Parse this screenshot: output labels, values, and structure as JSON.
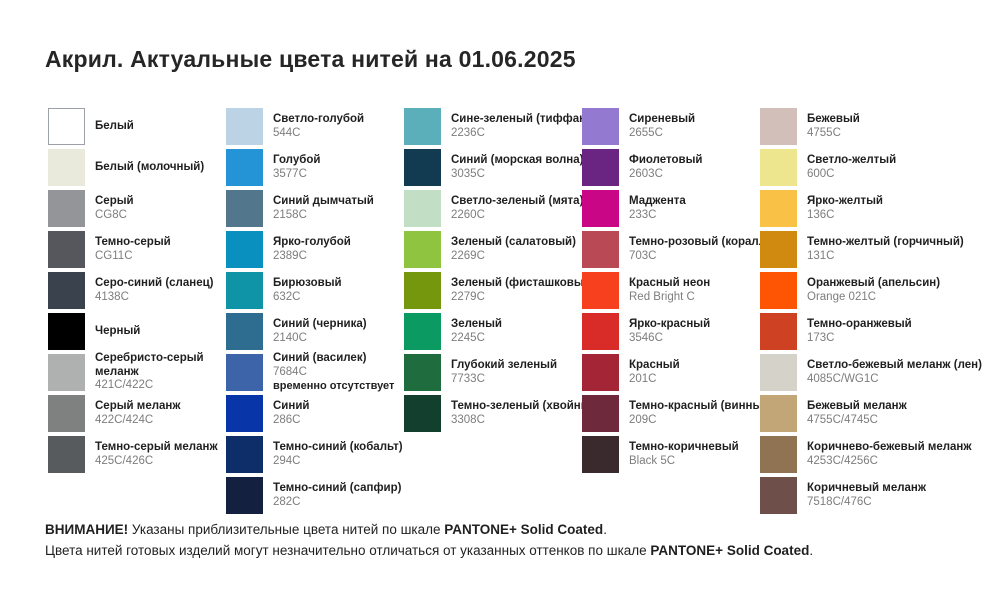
{
  "title": "Акрил. Актуальные цвета нитей на 01.06.2025",
  "columns": [
    {
      "items": [
        {
          "name": "Белый",
          "code": "",
          "color": "#FFFFFF",
          "border": true
        },
        {
          "name": "Белый (молочный)",
          "code": "",
          "color": "#E9E9DC"
        },
        {
          "name": "Серый",
          "code": "CG8C",
          "color": "#939598"
        },
        {
          "name": "Темно-серый",
          "code": "CG11C",
          "color": "#55575C"
        },
        {
          "name": "Серо-синий (сланец)",
          "code": "4138C",
          "color": "#3A424D"
        },
        {
          "name": "Черный",
          "code": "",
          "color": "#000000"
        },
        {
          "name": "Серебристо-серый меланж",
          "code": "421C/422C",
          "color": "#AFB1B0",
          "wrap": true
        },
        {
          "name": "Серый меланж",
          "code": "422C/424C",
          "color": "#7E8180"
        },
        {
          "name": "Темно-серый меланж",
          "code": "425C/426C",
          "color": "#575B5E"
        }
      ]
    },
    {
      "items": [
        {
          "name": "Светло-голубой",
          "code": "544C",
          "color": "#BCD3E6"
        },
        {
          "name": "Голубой",
          "code": "3577C",
          "color": "#2494D6"
        },
        {
          "name": "Синий дымчатый",
          "code": "2158C",
          "color": "#52768B"
        },
        {
          "name": "Ярко-голубой",
          "code": "2389C",
          "color": "#0990BE"
        },
        {
          "name": "Бирюзовый",
          "code": "632C",
          "color": "#0E94A6"
        },
        {
          "name": "Синий (черника)",
          "code": "2140C",
          "color": "#2F6D90"
        },
        {
          "name": "Синий (василек)",
          "code": "7684C",
          "color": "#3D63A8",
          "note": "временно отсутствует"
        },
        {
          "name": "Синий",
          "code": "286C",
          "color": "#0836A9"
        },
        {
          "name": "Темно-синий (кобальт)",
          "code": "294C",
          "color": "#0D2E69"
        },
        {
          "name": "Темно-синий (сапфир)",
          "code": "282C",
          "color": "#14203F"
        }
      ]
    },
    {
      "items": [
        {
          "name": "Сине-зеленый (тиффани)",
          "code": "2236C",
          "color": "#5AAFBA"
        },
        {
          "name": "Синий (морская волна)",
          "code": "3035C",
          "color": "#123B52"
        },
        {
          "name": "Светло-зеленый (мята)",
          "code": "2260C",
          "color": "#C2DEC5"
        },
        {
          "name": "Зеленый (салатовый)",
          "code": "2269C",
          "color": "#8EC43F"
        },
        {
          "name": "Зеленый (фисташковый)",
          "code": "2279C",
          "color": "#75970E"
        },
        {
          "name": "Зеленый",
          "code": "2245C",
          "color": "#0B9A61"
        },
        {
          "name": "Глубокий зеленый",
          "code": "7733C",
          "color": "#1F6C3F"
        },
        {
          "name": "Темно-зеленый (хвойный)",
          "code": "3308C",
          "color": "#13402E"
        }
      ]
    },
    {
      "items": [
        {
          "name": "Сиреневый",
          "code": "2655C",
          "color": "#9479D0"
        },
        {
          "name": "Фиолетовый",
          "code": "2603C",
          "color": "#6A2582"
        },
        {
          "name": "Маджента",
          "code": "233C",
          "color": "#C90786"
        },
        {
          "name": "Темно-розовый (коралл)",
          "code": "703C",
          "color": "#B94A55"
        },
        {
          "name": "Красный неон",
          "code": "Red Bright C",
          "color": "#F6401E"
        },
        {
          "name": "Ярко-красный",
          "code": "3546C",
          "color": "#D92B27"
        },
        {
          "name": "Красный",
          "code": "201C",
          "color": "#A42536"
        },
        {
          "name": "Темно-красный (винный)",
          "code": "209C",
          "color": "#6E2A3C"
        },
        {
          "name": "Темно-коричневый",
          "code": "Black 5C",
          "color": "#3A2A2E"
        }
      ]
    },
    {
      "items": [
        {
          "name": "Бежевый",
          "code": "4755C",
          "color": "#D2BFB9"
        },
        {
          "name": "Светло-желтый",
          "code": "600C",
          "color": "#EEE58F"
        },
        {
          "name": "Ярко-желтый",
          "code": "136C",
          "color": "#F9C246"
        },
        {
          "name": "Темно-желтый (горчичный)",
          "code": "131C",
          "color": "#D08A10"
        },
        {
          "name": "Оранжевый (апельсин)",
          "code": "Orange 021C",
          "color": "#FE5505"
        },
        {
          "name": "Темно-оранжевый",
          "code": "173C",
          "color": "#CF4123"
        },
        {
          "name": "Светло-бежевый меланж (лен)",
          "code": "4085C/WG1C",
          "color": "#D5D2CA"
        },
        {
          "name": "Бежевый меланж",
          "code": "4755C/4745C",
          "color": "#C2A678"
        },
        {
          "name": "Коричнево-бежевый меланж",
          "code": "4253C/4256C",
          "color": "#8F7352"
        },
        {
          "name": "Коричневый меланж",
          "code": "7518C/476C",
          "color": "#6E4F4A"
        }
      ]
    }
  ],
  "footer": {
    "line1": [
      {
        "text": "ВНИМАНИЕ!",
        "bold": true
      },
      {
        "text": " Указаны приблизительные цвета нитей по шкале ",
        "bold": false
      },
      {
        "text": "PANTONE+ Solid Coated",
        "bold": true
      },
      {
        "text": ".",
        "bold": false
      }
    ],
    "line2": [
      {
        "text": "Цвета нитей готовых изделий могут незначительно отличаться от указанных оттенков по шкале ",
        "bold": false
      },
      {
        "text": "PANTONE+ Solid Coated",
        "bold": true
      },
      {
        "text": ".",
        "bold": false
      }
    ]
  }
}
